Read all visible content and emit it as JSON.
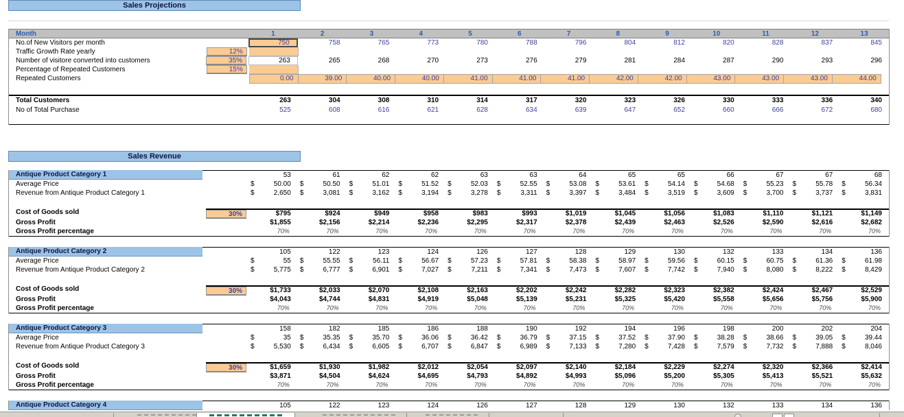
{
  "title": "Sales Projections",
  "projections": {
    "header_label": "Month",
    "months": [
      "1",
      "2",
      "3",
      "4",
      "5",
      "6",
      "7",
      "8",
      "9",
      "10",
      "11",
      "12",
      "13"
    ],
    "rows": {
      "visitors": {
        "label": "No.of New Visitors per month",
        "values": [
          "750",
          "758",
          "765",
          "773",
          "780",
          "788",
          "796",
          "804",
          "812",
          "820",
          "828",
          "837",
          "845"
        ]
      },
      "growth": {
        "label": "Traffic Growth Rate  yearly",
        "pct": "12%"
      },
      "converted": {
        "label": "Number of visitore converted into customers",
        "pct": "35%",
        "values": [
          "263",
          "265",
          "268",
          "270",
          "273",
          "276",
          "279",
          "281",
          "284",
          "287",
          "290",
          "293",
          "296"
        ]
      },
      "repeat_pct": {
        "label": "Percentage of Repeated Customers",
        "pct": "15%"
      },
      "repeated": {
        "label": "Repeated Customers",
        "values": [
          "0.00",
          "39.00",
          "40.00",
          "40.00",
          "41.00",
          "41.00",
          "41.00",
          "42.00",
          "42.00",
          "43.00",
          "43.00",
          "43.00",
          "44.00"
        ]
      },
      "total_customers": {
        "label": "Total Customers",
        "values": [
          "263",
          "304",
          "308",
          "310",
          "314",
          "317",
          "320",
          "323",
          "326",
          "330",
          "333",
          "336",
          "340"
        ]
      },
      "total_purchase": {
        "label": "No of Total Purchase",
        "values": [
          "525",
          "608",
          "616",
          "621",
          "628",
          "634",
          "639",
          "647",
          "652",
          "660",
          "666",
          "672",
          "680"
        ]
      }
    }
  },
  "revenue": {
    "title": "Sales Revenue",
    "labels": {
      "avg_price": "Average Price",
      "cogs": "Cost of Goods sold",
      "gross_profit": "Gross Profit",
      "gp_pct": "Gross Profit percentage"
    },
    "categories": [
      {
        "name": "Antique Product Category 1",
        "revenue_label": "Revenue from Antique Product Category 1",
        "units": [
          "53",
          "61",
          "62",
          "62",
          "63",
          "63",
          "64",
          "65",
          "65",
          "66",
          "67",
          "67",
          "68"
        ],
        "price": [
          "50.00",
          "50.50",
          "51.01",
          "51.52",
          "52.03",
          "52.55",
          "53.08",
          "53.61",
          "54.14",
          "54.68",
          "55.23",
          "55.78",
          "56.34"
        ],
        "revenue": [
          "2,650",
          "3,081",
          "3,162",
          "3,194",
          "3,278",
          "3,311",
          "3,397",
          "3,484",
          "3,519",
          "3,609",
          "3,700",
          "3,737",
          "3,831"
        ],
        "cogs_pct": "30%",
        "cogs": [
          "$795",
          "$924",
          "$949",
          "$958",
          "$983",
          "$993",
          "$1,019",
          "$1,045",
          "$1,056",
          "$1,083",
          "$1,110",
          "$1,121",
          "$1,149"
        ],
        "gross_profit": [
          "$1,855",
          "$2,156",
          "$2,214",
          "$2,236",
          "$2,295",
          "$2,317",
          "$2,378",
          "$2,439",
          "$2,463",
          "$2,526",
          "$2,590",
          "$2,616",
          "$2,682"
        ],
        "gp_pct": "70%"
      },
      {
        "name": "Antique Product Category 2",
        "revenue_label": "Revenue from Antique Product Category 2",
        "units": [
          "105",
          "122",
          "123",
          "124",
          "126",
          "127",
          "128",
          "129",
          "130",
          "132",
          "133",
          "134",
          "136"
        ],
        "price": [
          "55",
          "55.55",
          "56.11",
          "56.67",
          "57.23",
          "57.81",
          "58.38",
          "58.97",
          "59.56",
          "60.15",
          "60.75",
          "61.36",
          "61.98"
        ],
        "revenue": [
          "5,775",
          "6,777",
          "6,901",
          "7,027",
          "7,211",
          "7,341",
          "7,473",
          "7,607",
          "7,742",
          "7,940",
          "8,080",
          "8,222",
          "8,429"
        ],
        "cogs_pct": "30%",
        "cogs": [
          "$1,733",
          "$2,033",
          "$2,070",
          "$2,108",
          "$2,163",
          "$2,202",
          "$2,242",
          "$2,282",
          "$2,323",
          "$2,382",
          "$2,424",
          "$2,467",
          "$2,529"
        ],
        "gross_profit": [
          "$4,043",
          "$4,744",
          "$4,831",
          "$4,919",
          "$5,048",
          "$5,139",
          "$5,231",
          "$5,325",
          "$5,420",
          "$5,558",
          "$5,656",
          "$5,756",
          "$5,900"
        ],
        "gp_pct": "70%"
      },
      {
        "name": "Antique Product Category 3",
        "revenue_label": "Revenue from Antique Product Category 3",
        "units": [
          "158",
          "182",
          "185",
          "186",
          "188",
          "190",
          "192",
          "194",
          "196",
          "198",
          "200",
          "202",
          "204"
        ],
        "price": [
          "35",
          "35.35",
          "35.70",
          "36.06",
          "36.42",
          "36.79",
          "37.15",
          "37.52",
          "37.90",
          "38.28",
          "38.66",
          "39.05",
          "39.44"
        ],
        "revenue": [
          "5,530",
          "6,434",
          "6,605",
          "6,707",
          "6,847",
          "6,989",
          "7,133",
          "7,280",
          "7,428",
          "7,579",
          "7,732",
          "7,888",
          "8,046"
        ],
        "cogs_pct": "30%",
        "cogs": [
          "$1,659",
          "$1,930",
          "$1,982",
          "$2,012",
          "$2,054",
          "$2,097",
          "$2,140",
          "$2,184",
          "$2,229",
          "$2,274",
          "$2,320",
          "$2,366",
          "$2,414"
        ],
        "gross_profit": [
          "$3,871",
          "$4,504",
          "$4,624",
          "$4,695",
          "$4,793",
          "$4,892",
          "$4,993",
          "$5,096",
          "$5,200",
          "$5,305",
          "$5,413",
          "$5,521",
          "$5,632"
        ],
        "gp_pct": "70%"
      },
      {
        "name": "Antique Product Category 4",
        "units": [
          "105",
          "122",
          "123",
          "124",
          "126",
          "127",
          "128",
          "129",
          "130",
          "132",
          "133",
          "134",
          "136"
        ]
      }
    ]
  },
  "colors": {
    "header_band_blue": "#9DC3E6",
    "input_cell_orange": "#FBCB94",
    "month_bar_gray": "#C0C0C0",
    "data_navy": "#3F3F9E",
    "header_text_blue": "#2C5BB0"
  }
}
